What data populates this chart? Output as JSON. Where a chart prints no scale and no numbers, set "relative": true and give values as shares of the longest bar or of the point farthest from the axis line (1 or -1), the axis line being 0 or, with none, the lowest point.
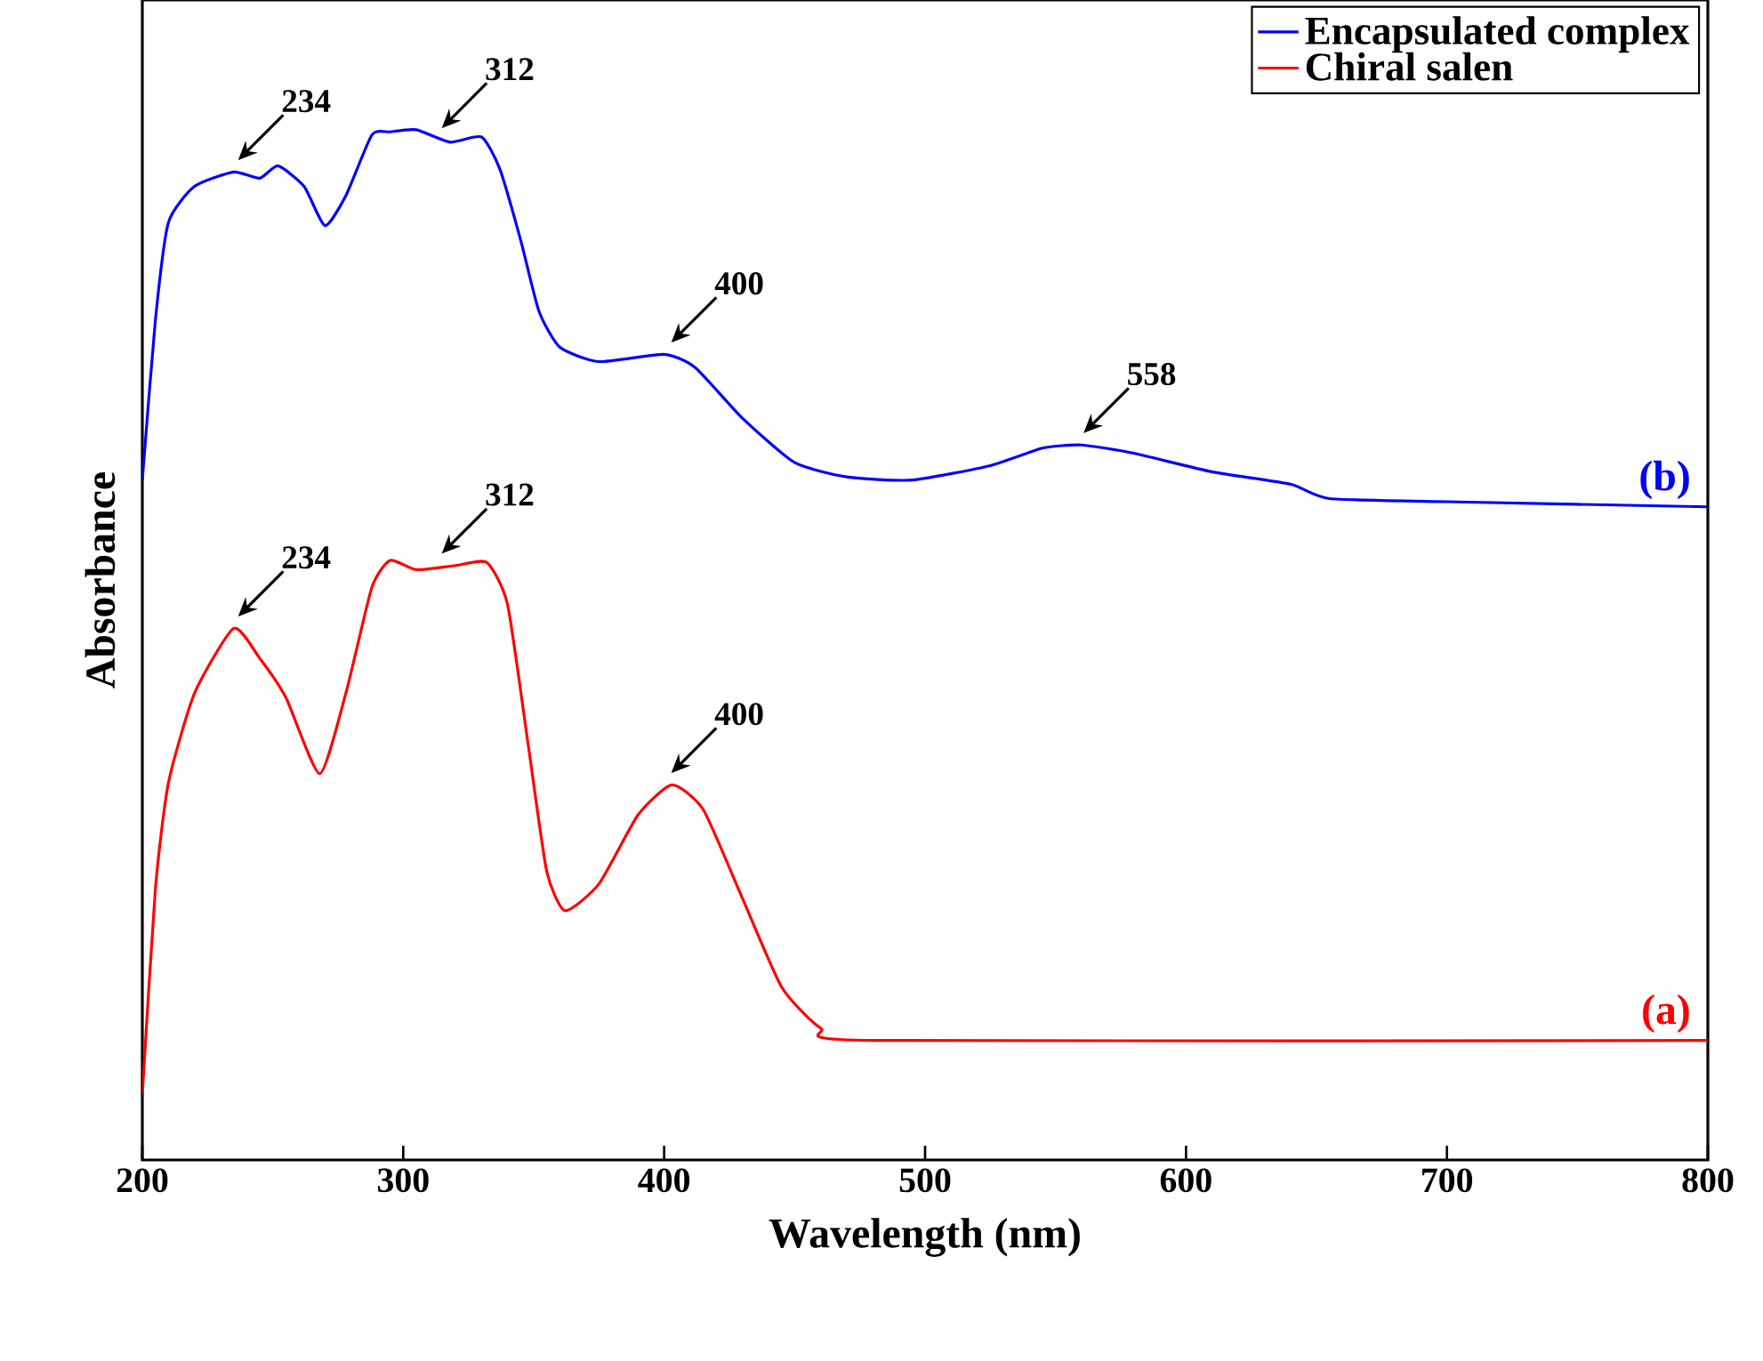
{
  "chart_data": {
    "type": "line",
    "relative": true,
    "xlabel": "Wavelength (nm)",
    "ylabel": "Absorbance",
    "xlim": [
      200,
      800
    ],
    "xticks": [
      200,
      300,
      400,
      500,
      600,
      700,
      800
    ],
    "legend": "top right",
    "grid": false,
    "marker": "none",
    "line_style": "solid",
    "series": [
      {
        "name": "Encapsulated complex",
        "color": "#0000ff",
        "x": [
          200,
          205,
          210,
          220,
          235,
          245,
          252,
          262,
          270,
          278,
          288,
          295,
          305,
          318,
          330,
          337,
          345,
          352,
          360,
          375,
          400,
          412,
          430,
          450,
          470,
          495,
          525,
          545,
          560,
          580,
          610,
          640,
          655,
          700,
          800
        ],
        "values": [
          0.66,
          0.815,
          0.91,
          0.945,
          0.959,
          0.953,
          0.965,
          0.945,
          0.907,
          0.936,
          0.995,
          0.998,
          1.0,
          0.988,
          0.993,
          0.962,
          0.893,
          0.824,
          0.789,
          0.775,
          0.782,
          0.769,
          0.72,
          0.677,
          0.663,
          0.66,
          0.674,
          0.691,
          0.694,
          0.686,
          0.668,
          0.656,
          0.642,
          0.639,
          0.634
        ]
      },
      {
        "name": "Chiral salen",
        "color": "#ff0000",
        "x": [
          200,
          205,
          210,
          220,
          235,
          245,
          255,
          268,
          278,
          288,
          295,
          305,
          320,
          332,
          340,
          348,
          355,
          362,
          375,
          390,
          403,
          415,
          430,
          445,
          460,
          480,
          800
        ],
        "values": [
          0.064,
          0.263,
          0.366,
          0.453,
          0.516,
          0.487,
          0.449,
          0.375,
          0.453,
          0.556,
          0.582,
          0.573,
          0.577,
          0.58,
          0.539,
          0.401,
          0.28,
          0.242,
          0.268,
          0.335,
          0.364,
          0.34,
          0.254,
          0.168,
          0.128,
          0.116,
          0.116
        ]
      }
    ],
    "annotations": [
      {
        "text": "234",
        "x": 234,
        "y": 0.959
      },
      {
        "text": "312",
        "x": 312,
        "y": 0.99
      },
      {
        "text": "400",
        "x": 400,
        "y": 0.782
      },
      {
        "text": "558",
        "x": 558,
        "y": 0.694
      },
      {
        "text": "234",
        "x": 234,
        "y": 0.516
      },
      {
        "text": "312",
        "x": 312,
        "y": 0.577
      },
      {
        "text": "400",
        "x": 400,
        "y": 0.364
      },
      "(b)",
      "(a)"
    ]
  }
}
